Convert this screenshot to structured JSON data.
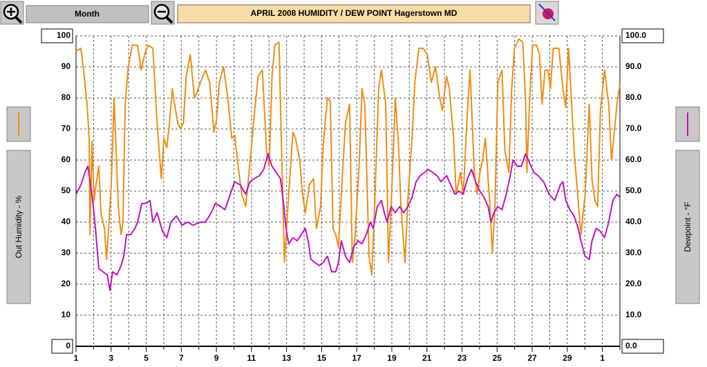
{
  "chart_data": {
    "type": "line",
    "title": "APRIL 2008    HUMIDITY / DEW POINT  Hagerstown MD",
    "period": "Month",
    "xlim": [
      1,
      32
    ],
    "xticks": [
      1,
      3,
      5,
      7,
      9,
      11,
      13,
      15,
      17,
      19,
      21,
      23,
      25,
      27,
      29,
      {
        "value": 31,
        "label": "1"
      }
    ],
    "xminorticks": [
      2,
      4,
      6,
      8,
      10,
      12,
      14,
      16,
      18,
      20,
      22,
      24,
      26,
      28,
      30,
      32
    ],
    "ylim": [
      0,
      100
    ],
    "yticks": [
      0,
      10,
      20,
      30,
      40,
      50,
      60,
      70,
      80,
      90,
      100
    ],
    "y2lim": [
      0,
      100
    ],
    "y2ticks": [
      {
        "value": 0,
        "label": "0.0"
      },
      {
        "value": 10,
        "label": "10.0"
      },
      {
        "value": 20,
        "label": "20.0"
      },
      {
        "value": 30,
        "label": "30.0"
      },
      {
        "value": 40,
        "label": "40.0"
      },
      {
        "value": 50,
        "label": "50.0"
      },
      {
        "value": 60,
        "label": "60.0"
      },
      {
        "value": 70,
        "label": "70.0"
      },
      {
        "value": 80,
        "label": "80.0"
      },
      {
        "value": 90,
        "label": "90.0"
      },
      {
        "value": 100,
        "label": "100.0"
      }
    ],
    "grid": true,
    "series": [
      {
        "name": "Out Humidity - %",
        "color": "#f08c10",
        "x": [
          1.0,
          1.28,
          1.43,
          1.63,
          1.75,
          1.79,
          1.91,
          2.03,
          2.14,
          2.3,
          2.42,
          2.62,
          2.74,
          2.86,
          3.01,
          3.17,
          3.29,
          3.41,
          3.57,
          3.68,
          3.8,
          3.96,
          4.2,
          4.51,
          4.71,
          4.91,
          5.11,
          5.38,
          5.62,
          5.86,
          6.01,
          6.17,
          6.33,
          6.49,
          6.65,
          6.8,
          6.96,
          7.12,
          7.28,
          7.51,
          7.75,
          7.91,
          8.15,
          8.38,
          8.62,
          8.86,
          9.01,
          9.17,
          9.41,
          9.65,
          9.88,
          10.04,
          10.24,
          10.44,
          10.67,
          10.91,
          11.15,
          11.38,
          11.62,
          11.86,
          12.01,
          12.17,
          12.33,
          12.57,
          12.73,
          12.88,
          13.12,
          13.36,
          13.51,
          13.75,
          13.91,
          14.07,
          14.3,
          14.54,
          14.7,
          14.94,
          15.09,
          15.33,
          15.49,
          15.65,
          15.8,
          15.96,
          16.12,
          16.36,
          16.59,
          16.75,
          16.91,
          17.15,
          17.3,
          17.46,
          17.7,
          17.86,
          18.02,
          18.25,
          18.41,
          18.65,
          18.81,
          18.96,
          19.2,
          19.36,
          19.52,
          19.75,
          19.91,
          20.15,
          20.31,
          20.54,
          20.78,
          21.02,
          21.25,
          21.49,
          21.73,
          21.88,
          22.12,
          22.28,
          22.52,
          22.67,
          22.91,
          23.07,
          23.31,
          23.46,
          23.7,
          23.86,
          24.02,
          24.17,
          24.33,
          24.57,
          24.73,
          24.88,
          25.04,
          25.28,
          25.44,
          25.67,
          25.83,
          25.99,
          26.23,
          26.46,
          26.62,
          26.7,
          26.86,
          27.02,
          27.25,
          27.41,
          27.57,
          27.73,
          27.89,
          28.04,
          28.2,
          28.52,
          28.75,
          28.91,
          29.07,
          29.23,
          29.39,
          29.62,
          29.78,
          30.02,
          30.25,
          30.41,
          30.57,
          30.73,
          30.89,
          31.12,
          31.36,
          31.52,
          31.68,
          31.83,
          31.99
        ],
        "values": [
          95,
          96,
          89,
          78,
          67,
          36,
          66,
          47,
          52,
          58,
          43,
          38,
          28,
          38,
          52,
          80,
          63,
          45,
          36,
          40,
          78,
          89,
          97,
          97,
          89,
          94,
          97,
          96,
          72,
          54,
          67,
          64,
          72,
          83,
          77,
          72,
          70,
          72,
          87,
          94,
          80,
          82,
          86,
          89,
          85,
          69,
          73,
          85,
          90,
          80,
          67,
          68,
          58,
          49,
          45,
          59,
          74,
          87,
          89,
          63,
          58,
          87,
          97,
          98,
          60,
          27,
          49,
          69,
          67,
          60,
          49,
          43,
          52,
          54,
          38,
          45,
          65,
          80,
          79,
          38,
          36,
          32,
          49,
          72,
          78,
          27,
          36,
          60,
          83,
          78,
          29,
          23,
          45,
          83,
          89,
          78,
          27,
          45,
          80,
          67,
          45,
          27,
          47,
          67,
          85,
          96,
          96,
          94,
          85,
          90,
          80,
          76,
          87,
          83,
          67,
          49,
          56,
          49,
          76,
          89,
          56,
          49,
          56,
          60,
          67,
          47,
          30,
          45,
          85,
          89,
          63,
          56,
          83,
          96,
          99,
          98,
          80,
          56,
          80,
          97,
          97,
          94,
          78,
          89,
          89,
          83,
          96,
          96,
          83,
          77,
          96,
          80,
          63,
          47,
          36,
          49,
          78,
          54,
          47,
          45,
          76,
          89,
          78,
          60,
          69,
          78,
          84
        ]
      },
      {
        "name": "Dewpoint - °F",
        "color": "#c010c0",
        "axis": "y2",
        "x": [
          1.0,
          1.28,
          1.51,
          1.67,
          1.83,
          1.99,
          2.14,
          2.3,
          2.54,
          2.78,
          2.93,
          3.09,
          3.33,
          3.57,
          3.72,
          3.88,
          4.12,
          4.36,
          4.51,
          4.75,
          4.99,
          5.22,
          5.38,
          5.62,
          5.93,
          6.17,
          6.41,
          6.72,
          7.04,
          7.36,
          7.67,
          8.07,
          8.38,
          8.7,
          8.94,
          9.25,
          9.49,
          9.73,
          10.04,
          10.36,
          10.67,
          10.91,
          11.15,
          11.46,
          11.7,
          11.94,
          12.17,
          12.41,
          12.65,
          12.81,
          12.97,
          13.12,
          13.36,
          13.6,
          13.84,
          14.07,
          14.23,
          14.39,
          14.62,
          14.86,
          15.09,
          15.33,
          15.57,
          15.8,
          15.96,
          16.12,
          16.36,
          16.59,
          16.83,
          17.07,
          17.3,
          17.54,
          17.78,
          17.94,
          18.17,
          18.41,
          18.57,
          18.73,
          18.96,
          19.2,
          19.44,
          19.67,
          19.91,
          20.15,
          20.38,
          20.62,
          20.86,
          21.09,
          21.33,
          21.57,
          21.8,
          22.12,
          22.36,
          22.59,
          22.83,
          23.07,
          23.31,
          23.54,
          23.78,
          24.02,
          24.25,
          24.49,
          24.65,
          24.81,
          25.04,
          25.28,
          25.52,
          25.75,
          25.91,
          26.15,
          26.38,
          26.62,
          26.86,
          27.1,
          27.33,
          27.65,
          27.96,
          28.28,
          28.6,
          28.75,
          28.91,
          29.15,
          29.39,
          29.62,
          29.78,
          30.02,
          30.25,
          30.41,
          30.65,
          30.89,
          31.12,
          31.36,
          31.6,
          31.83,
          31.99
        ],
        "values": [
          49,
          52,
          56,
          58,
          52,
          45,
          36,
          25,
          24,
          23,
          18,
          24,
          23,
          26,
          29,
          36,
          36,
          38,
          40,
          46,
          46,
          47,
          40,
          43,
          37,
          35,
          40,
          42,
          39,
          40,
          39,
          40,
          40,
          43,
          46,
          45,
          44,
          48,
          53,
          52,
          49,
          53,
          54,
          55,
          57,
          62,
          58,
          56,
          54,
          47,
          38,
          33,
          35,
          34,
          36,
          38,
          34,
          28,
          27,
          26,
          27,
          29,
          24,
          24,
          27,
          34,
          29,
          27,
          32,
          34,
          33,
          36,
          40,
          38,
          45,
          47,
          43,
          40,
          45,
          43,
          45,
          43,
          45,
          48,
          53,
          55,
          56,
          57,
          56,
          55,
          53,
          55,
          52,
          49,
          50,
          49,
          54,
          57,
          53,
          50,
          48,
          45,
          40,
          43,
          45,
          44,
          49,
          55,
          60,
          58,
          58,
          62,
          59,
          56,
          55,
          53,
          49,
          47,
          52,
          53,
          47,
          44,
          42,
          38,
          34,
          29,
          28,
          34,
          38,
          37,
          35,
          40,
          47,
          49,
          48
        ]
      }
    ]
  }
}
